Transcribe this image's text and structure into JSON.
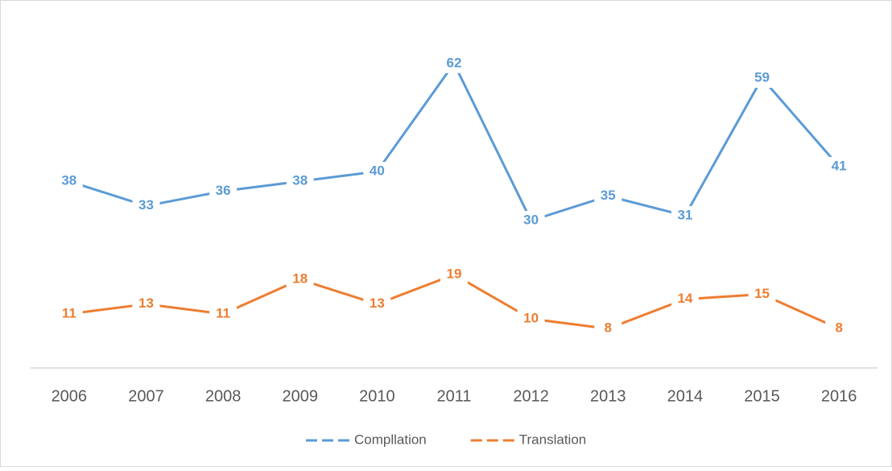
{
  "chart_data": {
    "type": "line",
    "categories": [
      "2006",
      "2007",
      "2008",
      "2009",
      "2010",
      "2011",
      "2012",
      "2013",
      "2014",
      "2015",
      "2016"
    ],
    "series": [
      {
        "name": "Compllation",
        "color": "#5b9bd5",
        "values": [
          38,
          33,
          36,
          38,
          40,
          62,
          30,
          35,
          31,
          59,
          41
        ]
      },
      {
        "name": "Translation",
        "color": "#ed7d31",
        "values": [
          11,
          13,
          11,
          18,
          13,
          19,
          10,
          8,
          14,
          15,
          8
        ]
      }
    ],
    "ylim": [
      0,
      70
    ],
    "legend": "bottom"
  }
}
